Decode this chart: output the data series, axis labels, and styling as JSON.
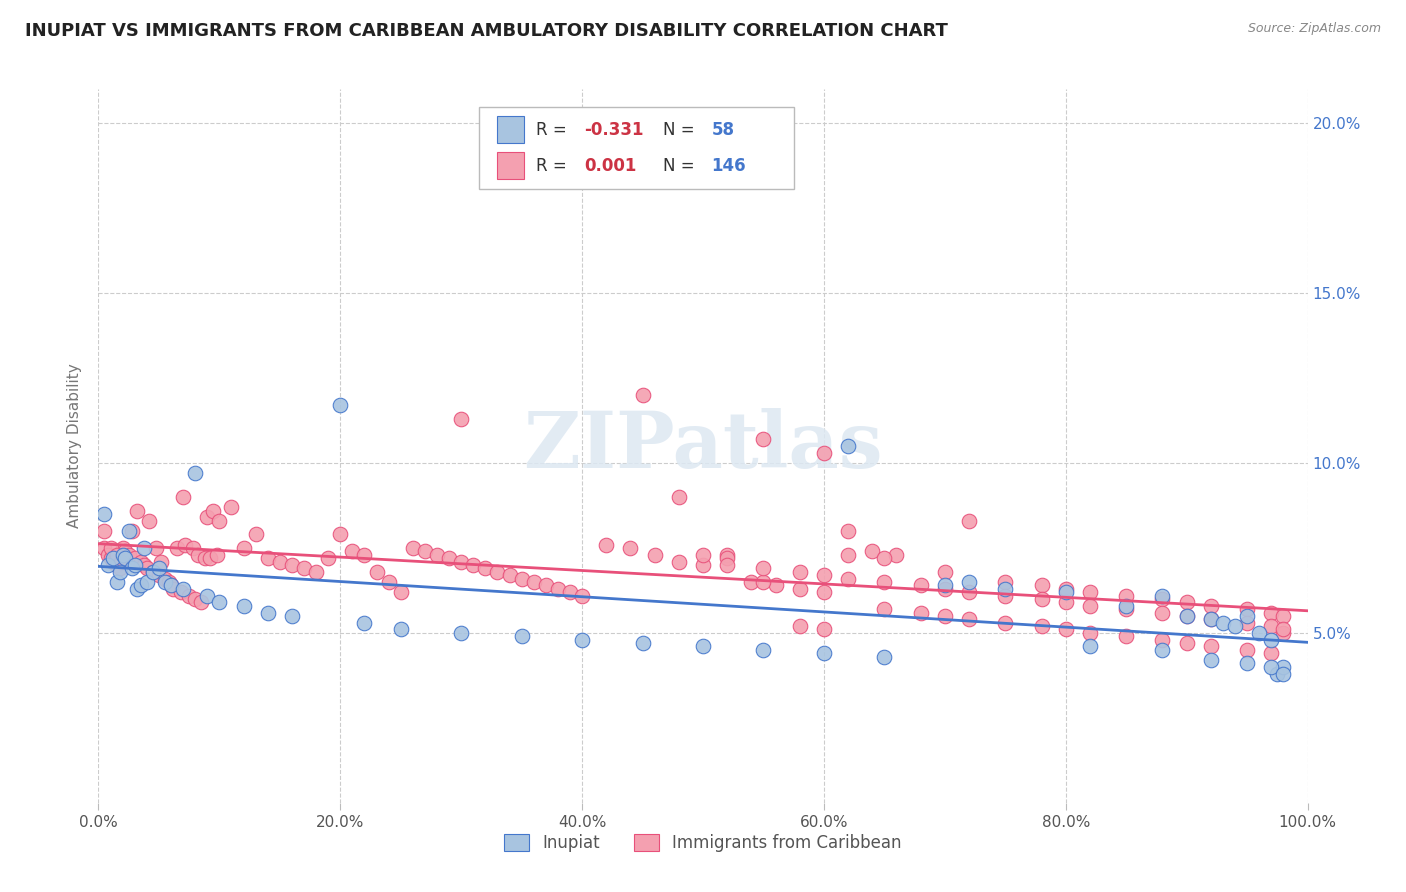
{
  "title": "INUPIAT VS IMMIGRANTS FROM CARIBBEAN AMBULATORY DISABILITY CORRELATION CHART",
  "source": "Source: ZipAtlas.com",
  "ylabel": "Ambulatory Disability",
  "background_color": "#ffffff",
  "inupiat_color": "#a8c4e0",
  "caribbean_color": "#f4a0b0",
  "inupiat_line_color": "#4477cc",
  "caribbean_line_color": "#e8507a",
  "inupiat_R": -0.331,
  "inupiat_N": 58,
  "caribbean_R": 0.001,
  "caribbean_N": 146,
  "xlim": [
    0,
    1.0
  ],
  "ylim": [
    0,
    0.21
  ],
  "xticks": [
    0.0,
    0.2,
    0.4,
    0.6,
    0.8,
    1.0
  ],
  "ytick_vals": [
    0.05,
    0.1,
    0.15,
    0.2
  ],
  "ytick_labels_right": [
    "5.0%",
    "10.0%",
    "15.0%",
    "20.0%"
  ],
  "xtick_labels": [
    "0.0%",
    "20.0%",
    "40.0%",
    "60.0%",
    "80.0%",
    "100.0%"
  ],
  "watermark": "ZIPatlas",
  "legend_inupiat_label": "Inupiat",
  "legend_caribbean_label": "Immigrants from Caribbean",
  "inupiat_scatter_x": [
    0.005,
    0.008,
    0.012,
    0.015,
    0.018,
    0.02,
    0.022,
    0.025,
    0.028,
    0.03,
    0.032,
    0.035,
    0.038,
    0.04,
    0.045,
    0.05,
    0.055,
    0.06,
    0.07,
    0.08,
    0.09,
    0.1,
    0.12,
    0.14,
    0.16,
    0.2,
    0.22,
    0.25,
    0.3,
    0.35,
    0.4,
    0.45,
    0.5,
    0.55,
    0.6,
    0.65,
    0.7,
    0.75,
    0.8,
    0.85,
    0.88,
    0.9,
    0.92,
    0.93,
    0.94,
    0.95,
    0.96,
    0.97,
    0.975,
    0.98,
    0.62,
    0.72,
    0.82,
    0.88,
    0.92,
    0.95,
    0.97,
    0.98
  ],
  "inupiat_scatter_y": [
    0.085,
    0.07,
    0.072,
    0.065,
    0.068,
    0.073,
    0.072,
    0.08,
    0.069,
    0.07,
    0.063,
    0.064,
    0.075,
    0.065,
    0.068,
    0.069,
    0.065,
    0.064,
    0.063,
    0.097,
    0.061,
    0.059,
    0.058,
    0.056,
    0.055,
    0.117,
    0.053,
    0.051,
    0.05,
    0.049,
    0.048,
    0.047,
    0.046,
    0.045,
    0.044,
    0.043,
    0.064,
    0.063,
    0.062,
    0.058,
    0.061,
    0.055,
    0.054,
    0.053,
    0.052,
    0.055,
    0.05,
    0.048,
    0.038,
    0.04,
    0.105,
    0.065,
    0.046,
    0.045,
    0.042,
    0.041,
    0.04,
    0.038
  ],
  "caribbean_scatter_x": [
    0.005,
    0.008,
    0.01,
    0.012,
    0.015,
    0.018,
    0.02,
    0.022,
    0.025,
    0.028,
    0.03,
    0.032,
    0.035,
    0.038,
    0.04,
    0.042,
    0.045,
    0.048,
    0.05,
    0.052,
    0.055,
    0.058,
    0.06,
    0.062,
    0.065,
    0.068,
    0.07,
    0.072,
    0.075,
    0.078,
    0.08,
    0.082,
    0.085,
    0.088,
    0.09,
    0.092,
    0.095,
    0.098,
    0.1,
    0.11,
    0.12,
    0.13,
    0.14,
    0.15,
    0.16,
    0.17,
    0.18,
    0.19,
    0.2,
    0.21,
    0.22,
    0.23,
    0.24,
    0.25,
    0.26,
    0.27,
    0.28,
    0.29,
    0.3,
    0.31,
    0.32,
    0.33,
    0.34,
    0.35,
    0.36,
    0.37,
    0.38,
    0.39,
    0.4,
    0.42,
    0.44,
    0.46,
    0.48,
    0.5,
    0.52,
    0.54,
    0.56,
    0.58,
    0.6,
    0.62,
    0.64,
    0.66,
    0.55,
    0.6,
    0.65,
    0.7,
    0.72,
    0.75,
    0.78,
    0.8,
    0.82,
    0.85,
    0.88,
    0.9,
    0.92,
    0.95,
    0.97,
    0.98,
    0.3,
    0.45,
    0.48,
    0.5,
    0.52,
    0.55,
    0.58,
    0.6,
    0.62,
    0.65,
    0.68,
    0.7,
    0.72,
    0.75,
    0.78,
    0.8,
    0.82,
    0.85,
    0.88,
    0.9,
    0.92,
    0.95,
    0.97,
    0.98,
    0.52,
    0.55,
    0.58,
    0.6,
    0.62,
    0.65,
    0.68,
    0.7,
    0.72,
    0.75,
    0.78,
    0.8,
    0.82,
    0.85,
    0.88,
    0.9,
    0.92,
    0.95,
    0.97,
    0.98,
    0.005,
    0.01,
    0.015,
    0.019
  ],
  "caribbean_scatter_y": [
    0.075,
    0.073,
    0.072,
    0.071,
    0.07,
    0.069,
    0.075,
    0.074,
    0.073,
    0.08,
    0.072,
    0.086,
    0.071,
    0.07,
    0.069,
    0.083,
    0.068,
    0.075,
    0.067,
    0.071,
    0.066,
    0.065,
    0.064,
    0.063,
    0.075,
    0.062,
    0.09,
    0.076,
    0.061,
    0.075,
    0.06,
    0.073,
    0.059,
    0.072,
    0.084,
    0.072,
    0.086,
    0.073,
    0.083,
    0.087,
    0.075,
    0.079,
    0.072,
    0.071,
    0.07,
    0.069,
    0.068,
    0.072,
    0.079,
    0.074,
    0.073,
    0.068,
    0.065,
    0.062,
    0.075,
    0.074,
    0.073,
    0.072,
    0.071,
    0.07,
    0.069,
    0.068,
    0.067,
    0.066,
    0.065,
    0.064,
    0.063,
    0.062,
    0.061,
    0.076,
    0.075,
    0.073,
    0.071,
    0.07,
    0.073,
    0.065,
    0.064,
    0.063,
    0.062,
    0.073,
    0.074,
    0.073,
    0.107,
    0.103,
    0.072,
    0.068,
    0.083,
    0.065,
    0.064,
    0.063,
    0.062,
    0.061,
    0.06,
    0.059,
    0.058,
    0.057,
    0.056,
    0.055,
    0.113,
    0.12,
    0.09,
    0.073,
    0.072,
    0.065,
    0.052,
    0.051,
    0.08,
    0.057,
    0.056,
    0.055,
    0.054,
    0.053,
    0.052,
    0.051,
    0.05,
    0.049,
    0.048,
    0.047,
    0.046,
    0.045,
    0.044,
    0.05,
    0.07,
    0.069,
    0.068,
    0.067,
    0.066,
    0.065,
    0.064,
    0.063,
    0.062,
    0.061,
    0.06,
    0.059,
    0.058,
    0.057,
    0.056,
    0.055,
    0.054,
    0.053,
    0.052,
    0.051,
    0.08,
    0.075,
    0.073,
    0.071
  ]
}
